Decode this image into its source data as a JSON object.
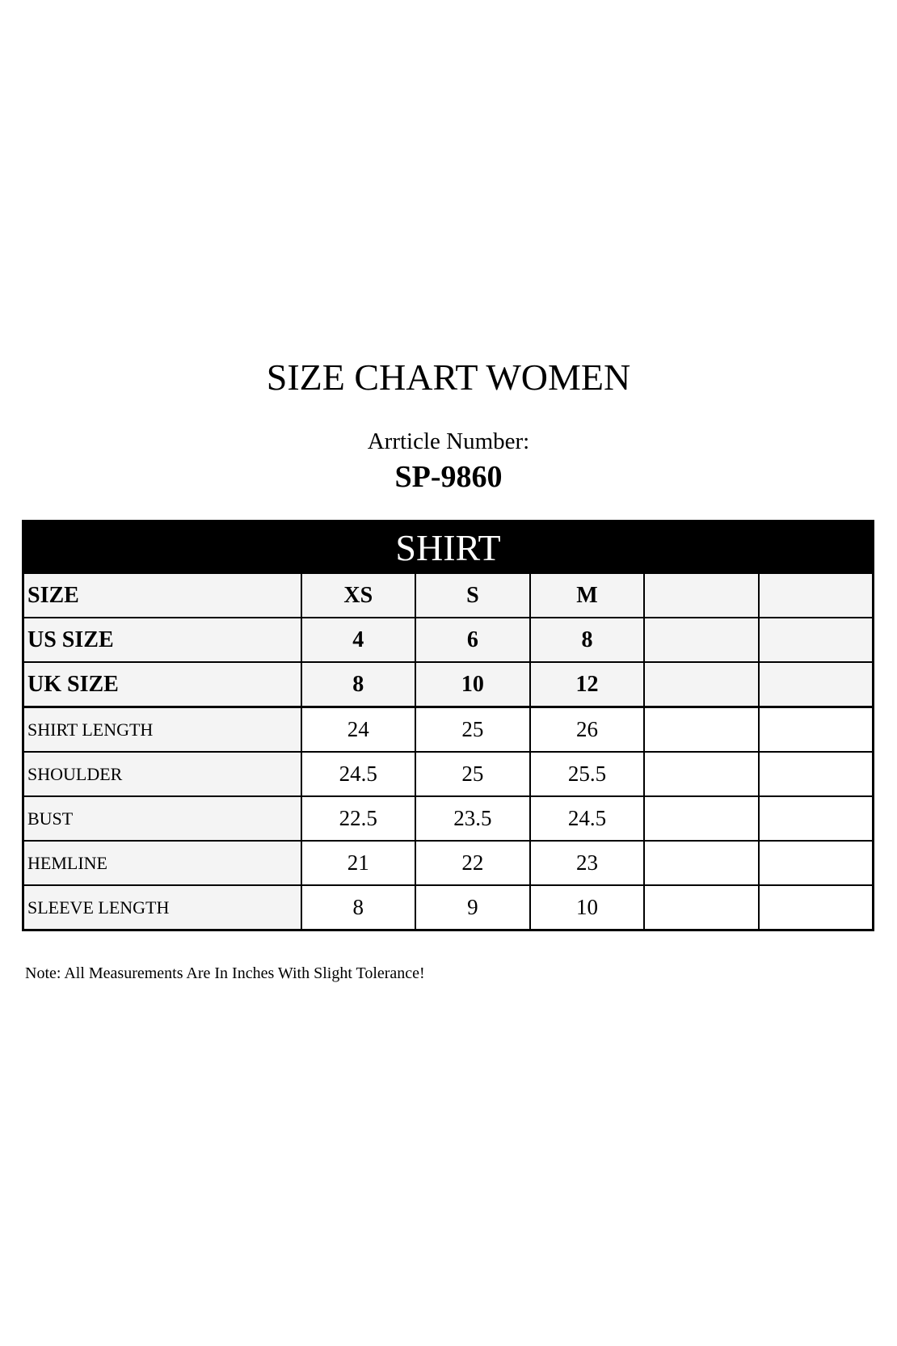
{
  "title": "SIZE CHART WOMEN",
  "article_label": "Arrticle Number:",
  "article_number": "SP-9860",
  "table": {
    "section": "SHIRT",
    "size_rows": [
      {
        "label": "SIZE",
        "values": [
          "XS",
          "S",
          "M",
          "",
          ""
        ]
      },
      {
        "label": "US SIZE",
        "values": [
          "4",
          "6",
          "8",
          "",
          ""
        ]
      },
      {
        "label": "UK SIZE",
        "values": [
          "8",
          "10",
          "12",
          "",
          ""
        ]
      }
    ],
    "measure_rows": [
      {
        "label": "SHIRT LENGTH",
        "values": [
          "24",
          "25",
          "26",
          "",
          ""
        ]
      },
      {
        "label": "SHOULDER",
        "values": [
          "24.5",
          "25",
          "25.5",
          "",
          ""
        ]
      },
      {
        "label": "BUST",
        "values": [
          "22.5",
          "23.5",
          "24.5",
          "",
          ""
        ]
      },
      {
        "label": "HEMLINE",
        "values": [
          "21",
          "22",
          "23",
          "",
          ""
        ]
      },
      {
        "label": "SLEEVE LENGTH",
        "values": [
          "8",
          "9",
          "10",
          "",
          ""
        ]
      }
    ]
  },
  "note": "Note: All Measurements Are In Inches With Slight Tolerance!"
}
